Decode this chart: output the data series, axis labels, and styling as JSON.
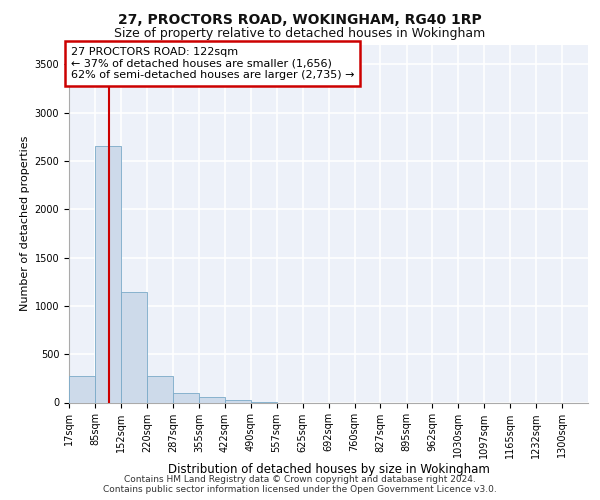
{
  "title1": "27, PROCTORS ROAD, WOKINGHAM, RG40 1RP",
  "title2": "Size of property relative to detached houses in Wokingham",
  "xlabel": "Distribution of detached houses by size in Wokingham",
  "ylabel": "Number of detached properties",
  "footer1": "Contains HM Land Registry data © Crown copyright and database right 2024.",
  "footer2": "Contains public sector information licensed under the Open Government Licence v3.0.",
  "annotation_line1": "27 PROCTORS ROAD: 122sqm",
  "annotation_line2": "← 37% of detached houses are smaller (1,656)",
  "annotation_line3": "62% of semi-detached houses are larger (2,735) →",
  "bar_color": "#cddaea",
  "bar_edge_color": "#7aaac8",
  "red_line_x": 122,
  "bin_edges": [
    17,
    85,
    152,
    220,
    287,
    355,
    422,
    490,
    557,
    625,
    692,
    760,
    827,
    895,
    962,
    1030,
    1097,
    1165,
    1232,
    1300,
    1367
  ],
  "bar_heights": [
    275,
    2650,
    1140,
    275,
    100,
    55,
    30,
    5,
    0,
    0,
    0,
    0,
    0,
    0,
    0,
    0,
    0,
    0,
    0,
    0
  ],
  "ylim": [
    0,
    3700
  ],
  "yticks": [
    0,
    500,
    1000,
    1500,
    2000,
    2500,
    3000,
    3500
  ],
  "plot_background": "#edf1f9",
  "grid_color": "#ffffff",
  "annotation_box_color": "#ffffff",
  "annotation_border_color": "#cc0000",
  "red_line_color": "#cc0000",
  "title1_fontsize": 10,
  "title2_fontsize": 9,
  "xlabel_fontsize": 8.5,
  "ylabel_fontsize": 8,
  "tick_fontsize": 7,
  "annotation_fontsize": 8,
  "footer_fontsize": 6.5
}
